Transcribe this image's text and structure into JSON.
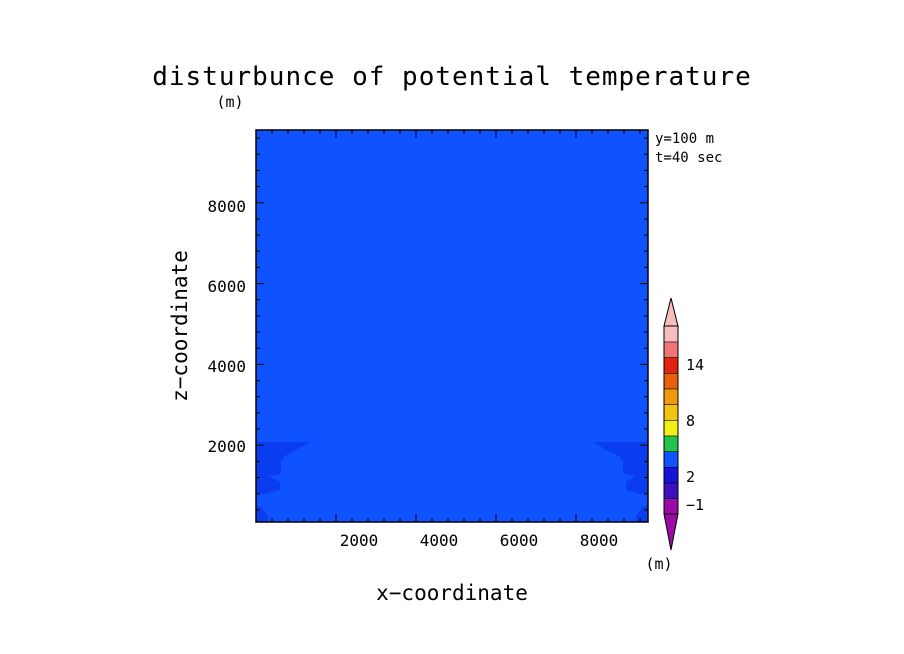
{
  "chart_data": {
    "type": "heatmap",
    "title": "disturbunce of potential temperature",
    "unit_label": "(m)",
    "xlabel": "x−coordinate",
    "ylabel": "z−coordinate",
    "annotations": [
      "y=100 m",
      "t=40 sec"
    ],
    "xlim": [
      0,
      9800
    ],
    "ylim": [
      100,
      9800
    ],
    "x_ticks": [
      2000,
      4000,
      6000,
      8000
    ],
    "y_ticks": [
      2000,
      4000,
      6000,
      8000
    ],
    "x_tick_labels": [
      "2000",
      "4000",
      "6000",
      "8000"
    ],
    "y_tick_labels": [
      "2000",
      "4000",
      "6000",
      "8000"
    ],
    "background_value_color": "#0f52ff",
    "colorbar": {
      "unit_label": "(m)",
      "tick_labels": [
        "14",
        "8",
        "2",
        "−1"
      ],
      "colors": [
        "#9b0ba6",
        "#3c0fbf",
        "#1414d6",
        "#0f52ff",
        "#23c24a",
        "#f0f016",
        "#f0c411",
        "#f09a0b",
        "#e8600a",
        "#e02410",
        "#f07575",
        "#f7bcbc"
      ]
    },
    "features": [
      {
        "name": "left-lower-patch",
        "color": "#0a3cf0",
        "z_top": 2000
      },
      {
        "name": "right-lower-patch",
        "color": "#0a3cf0",
        "z_top": 2000
      }
    ]
  }
}
